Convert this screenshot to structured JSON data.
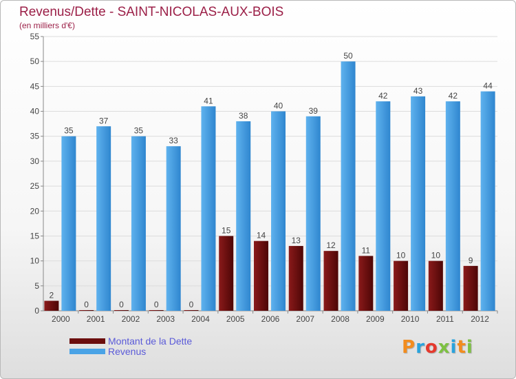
{
  "header": {
    "title": "Revenus/Dette - SAINT-NICOLAS-AUX-BOIS",
    "subtitle": "(en milliers d'€)"
  },
  "brand": {
    "text": "Proxiti",
    "letter_colors": [
      "#f28c1e",
      "#29a3dd",
      "#e5392d",
      "#7dc142",
      "#29a3dd",
      "#f28c1e",
      "#7dc142"
    ]
  },
  "legend": {
    "items": [
      {
        "label": "Montant de la Dette",
        "color": "#6b0d0d"
      },
      {
        "label": "Revenus",
        "color": "#4aa3e6"
      }
    ]
  },
  "chart_data": {
    "type": "bar",
    "categories": [
      "2000",
      "2001",
      "2002",
      "2003",
      "2004",
      "2005",
      "2006",
      "2007",
      "2008",
      "2009",
      "2010",
      "2011",
      "2012"
    ],
    "series": [
      {
        "name": "Montant de la Dette",
        "values": [
          2,
          0,
          0,
          0,
          0,
          15,
          14,
          13,
          12,
          11,
          10,
          10,
          9
        ],
        "color": "#6b0d0d"
      },
      {
        "name": "Revenus",
        "values": [
          35,
          37,
          35,
          33,
          41,
          38,
          40,
          39,
          50,
          42,
          43,
          42,
          44
        ],
        "color": "#4aa3e6"
      }
    ],
    "ylim": [
      0,
      55
    ],
    "yticks": [
      0,
      5,
      10,
      15,
      20,
      25,
      30,
      35,
      40,
      45,
      50,
      55
    ],
    "grid": true,
    "legend_position": "bottom-left"
  }
}
